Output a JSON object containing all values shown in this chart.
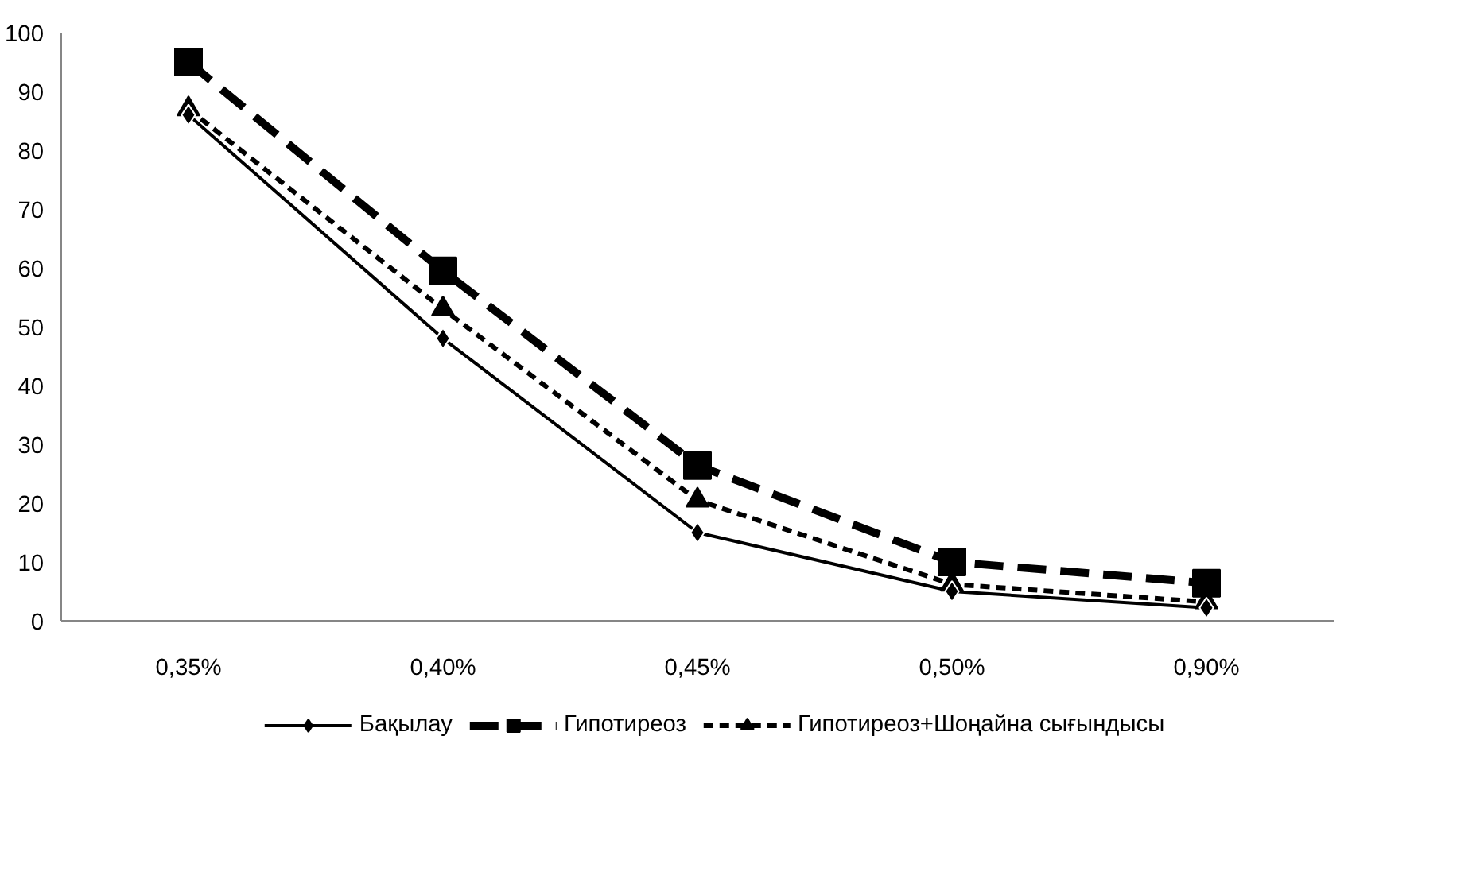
{
  "chart_data": {
    "type": "line",
    "categories": [
      "0,35%",
      "0,40%",
      "0,45%",
      "0,50%",
      "0,90%"
    ],
    "series": [
      {
        "name": "Бақылау",
        "color": "#000000",
        "marker": "diamond",
        "line_style": "solid",
        "values": [
          86,
          48,
          15,
          5,
          2.2
        ]
      },
      {
        "name": "Гипотиреоз",
        "color": "#000000",
        "marker": "square",
        "line_style": "dashed",
        "values": [
          95,
          59.5,
          26.4,
          10,
          6.4
        ]
      },
      {
        "name": "Гипотиреоз+Шоңайна сығындысы",
        "color": "#000000",
        "marker": "triangle",
        "line_style": "dotted",
        "values": [
          87,
          53,
          20.5,
          6.2,
          3.2
        ]
      }
    ],
    "ylim": [
      0,
      100
    ],
    "yticks": [
      0,
      10,
      20,
      30,
      40,
      50,
      60,
      70,
      80,
      90,
      100
    ],
    "grid": false,
    "legend": "bottom"
  }
}
